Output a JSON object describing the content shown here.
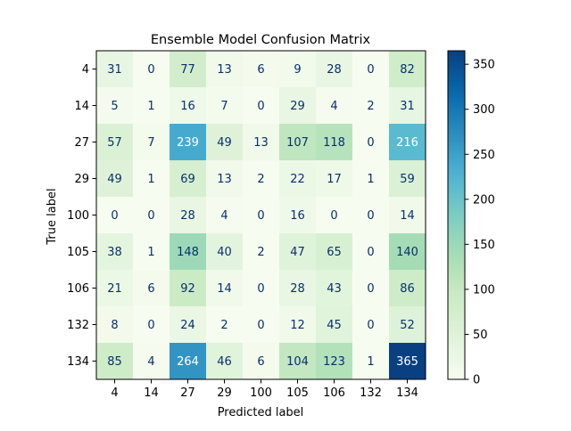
{
  "chart_data": {
    "type": "heatmap",
    "title": "Ensemble Model Confusion Matrix",
    "xlabel": "Predicted label",
    "ylabel": "True label",
    "labels": [
      "4",
      "14",
      "27",
      "29",
      "100",
      "105",
      "106",
      "132",
      "134"
    ],
    "matrix": [
      [
        31,
        0,
        77,
        13,
        6,
        9,
        28,
        0,
        82
      ],
      [
        5,
        1,
        16,
        7,
        0,
        29,
        4,
        2,
        31
      ],
      [
        57,
        7,
        239,
        49,
        13,
        107,
        118,
        0,
        216
      ],
      [
        49,
        1,
        69,
        13,
        2,
        22,
        17,
        1,
        59
      ],
      [
        0,
        0,
        28,
        4,
        0,
        16,
        0,
        0,
        14
      ],
      [
        38,
        1,
        148,
        40,
        2,
        47,
        65,
        0,
        140
      ],
      [
        21,
        6,
        92,
        14,
        0,
        28,
        43,
        0,
        86
      ],
      [
        8,
        0,
        24,
        2,
        0,
        12,
        45,
        0,
        52
      ],
      [
        85,
        4,
        264,
        46,
        6,
        104,
        123,
        1,
        365
      ]
    ],
    "colormap": "GnBu",
    "colorbar": {
      "min": 0,
      "max": 365,
      "ticks": [
        0,
        50,
        100,
        150,
        200,
        250,
        300,
        350
      ]
    },
    "text_colors": {
      "dark_cells": "#ffffff",
      "light_cells": "#08306b"
    },
    "grid": false
  }
}
